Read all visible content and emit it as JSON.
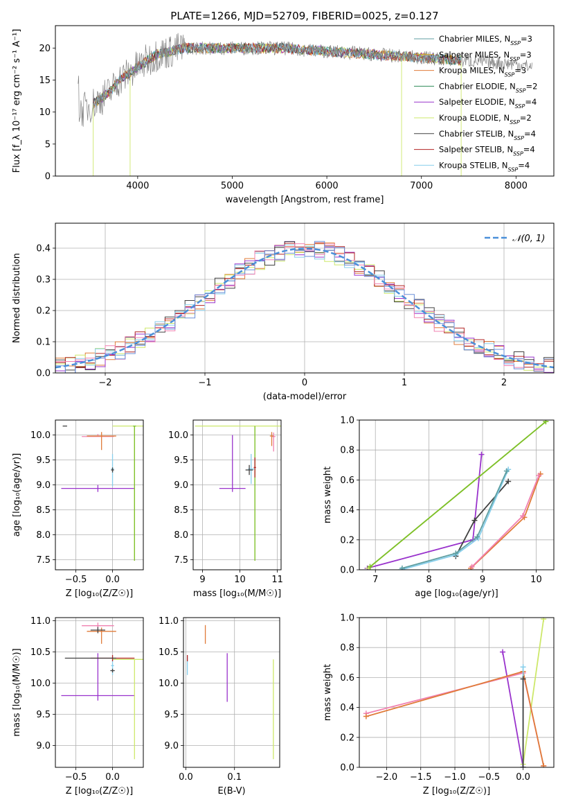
{
  "figure": {
    "title": "PLATE=1266, MJD=52709, FIBERID=0025, z=0.127"
  },
  "chart_data": [
    {
      "id": "spectrum",
      "type": "line",
      "xlabel": "wavelength [Angstrom, rest frame]",
      "ylabel": "Flux [f_λ 10⁻¹⁷ erg cm⁻² s⁻¹ A⁻¹]",
      "xlim": [
        3130,
        8400
      ],
      "ylim": [
        0,
        23.5
      ],
      "xticks": [
        4000,
        5000,
        6000,
        7000,
        8000
      ],
      "yticks": [
        0,
        5,
        10,
        15,
        20
      ],
      "grid": false,
      "legend_position": "top-right",
      "data_series": {
        "name": "",
        "color": "#808080",
        "x_range": [
          3370,
          8170
        ],
        "approx_points": [
          [
            3380,
            10
          ],
          [
            3500,
            11
          ],
          [
            3600,
            12
          ],
          [
            3700,
            13
          ],
          [
            3800,
            15
          ],
          [
            3900,
            16
          ],
          [
            4000,
            17
          ],
          [
            4200,
            19
          ],
          [
            4500,
            20
          ],
          [
            5000,
            20
          ],
          [
            5500,
            20
          ],
          [
            6000,
            19.5
          ],
          [
            6500,
            19
          ],
          [
            7000,
            18.5
          ],
          [
            7500,
            18
          ],
          [
            8000,
            17.5
          ],
          [
            8170,
            17
          ]
        ]
      },
      "series": [
        {
          "name": "Chabrier MILES, N_SSP=3",
          "color": "#5f9ea0"
        },
        {
          "name": "Salpeter MILES, N_SSP=3",
          "color": "#d4a020"
        },
        {
          "name": "Kroupa MILES, N_SSP=3",
          "color": "#e07b39"
        },
        {
          "name": "Chabrier ELODIE, N_SSP=2",
          "color": "#2e8b57"
        },
        {
          "name": "Salpeter ELODIE, N_SSP=4",
          "color": "#9932cc"
        },
        {
          "name": "Kroupa ELODIE, N_SSP=2",
          "color": "#cde86a"
        },
        {
          "name": "Chabrier STELIB, N_SSP=4",
          "color": "#404040"
        },
        {
          "name": "Salpeter STELIB, N_SSP=4",
          "color": "#b22222"
        },
        {
          "name": "Kroupa STELIB, N_SSP=4",
          "color": "#87ceeb"
        }
      ],
      "model_x_range": [
        3530,
        7420
      ]
    },
    {
      "id": "residuals",
      "type": "histogram",
      "xlabel": "(data-model)/error",
      "ylabel": "Normed distribution",
      "xlim": [
        -2.5,
        2.5
      ],
      "ylim": [
        0,
        0.48
      ],
      "xticks": [
        -2,
        -1,
        0,
        1,
        2
      ],
      "yticks": [
        0.0,
        0.1,
        0.2,
        0.3,
        0.4
      ],
      "grid": true,
      "legend_position": "top-right",
      "reference": {
        "name": "𝒩(0, 1)",
        "color": "#4a90d9",
        "style": "dashed"
      },
      "hist_colors": [
        "#e07b39",
        "#9932cc",
        "#cde86a",
        "#404040",
        "#b22222",
        "#87ceeb",
        "#f080b0",
        "#6a8fd8"
      ]
    },
    {
      "id": "age_vs_Z",
      "type": "errorbar",
      "xlabel": "Z [log₁₀(Z/Z☉)]",
      "ylabel": "age  [log₁₀(age/yr)]",
      "xlim": [
        -0.78,
        0.42
      ],
      "ylim": [
        7.3,
        10.3
      ],
      "xticks": [
        -0.5,
        0.0
      ],
      "yticks": [
        7.5,
        8.0,
        8.5,
        9.0,
        9.5,
        10.0
      ],
      "grid": true,
      "points": [
        {
          "x": -0.2,
          "y": 8.93,
          "xerr": 0.5,
          "yerr": [
            0.07,
            0.07
          ],
          "color": "#9932cc"
        },
        {
          "x": 0.3,
          "y": 10.18,
          "xerr": 0.3,
          "yerr": [
            2.7,
            0.0
          ],
          "color": "#cde86a"
        },
        {
          "x": 0.3,
          "y": 10.18,
          "xerr": 0.02,
          "yerr": [
            2.7,
            0.0
          ],
          "color": "#7cbf2a"
        },
        {
          "x": -0.2,
          "y": 9.97,
          "xerr": 0.22,
          "yerr": [
            0.0,
            0.05
          ],
          "color": "#f080b0"
        },
        {
          "x": -0.15,
          "y": 9.98,
          "xerr": 0.2,
          "yerr": [
            0.28,
            0.08
          ],
          "color": "#e07b39"
        },
        {
          "x": 0.0,
          "y": 9.32,
          "xerr": 0.02,
          "yerr": [
            0.35,
            0.3
          ],
          "color": "#87ceeb"
        },
        {
          "x": 0.0,
          "y": 9.3,
          "xerr": 0.02,
          "yerr": [
            0.05,
            0.05
          ],
          "color": "#404040"
        },
        {
          "x": -0.65,
          "y": 10.18,
          "xerr": 0.03,
          "yerr": [
            0.0,
            0.0
          ],
          "color": "#404040"
        }
      ]
    },
    {
      "id": "age_vs_mass",
      "type": "errorbar",
      "xlabel": "mass [log₁₀(M/M☉)]",
      "ylabel": "",
      "xlim": [
        8.75,
        11.1
      ],
      "ylim": [
        7.3,
        10.3
      ],
      "xticks": [
        9,
        10,
        11
      ],
      "yticks": [
        7.5,
        8.0,
        8.5,
        9.0,
        9.5,
        10.0
      ],
      "grid": true,
      "points": [
        {
          "x": 9.8,
          "y": 8.93,
          "xerr": 0.35,
          "yerr": [
            0.07,
            1.07
          ],
          "color": "#9932cc"
        },
        {
          "x": 10.4,
          "y": 10.18,
          "xerr": 1.6,
          "yerr": [
            2.7,
            0.0
          ],
          "color": "#cde86a"
        },
        {
          "x": 10.4,
          "y": 10.18,
          "xerr": 0.0,
          "yerr": [
            2.7,
            0.0
          ],
          "color": "#7cbf2a"
        },
        {
          "x": 10.9,
          "y": 9.97,
          "xerr": 0.05,
          "yerr": [
            0.3,
            0.08
          ],
          "color": "#f080b0"
        },
        {
          "x": 10.85,
          "y": 9.98,
          "xerr": 0.05,
          "yerr": [
            0.2,
            0.08
          ],
          "color": "#e07b39"
        },
        {
          "x": 10.3,
          "y": 9.32,
          "xerr": 0.08,
          "yerr": [
            0.3,
            0.3
          ],
          "color": "#87ceeb"
        },
        {
          "x": 10.25,
          "y": 9.3,
          "xerr": 0.1,
          "yerr": [
            0.1,
            0.1
          ],
          "color": "#404040"
        },
        {
          "x": 10.4,
          "y": 9.35,
          "xerr": 0.03,
          "yerr": [
            0.2,
            0.2
          ],
          "color": "#b22222"
        }
      ]
    },
    {
      "id": "massweight_vs_age",
      "type": "line",
      "xlabel": "age  [log₁₀(age/yr)]",
      "ylabel": "mass weight",
      "xlim": [
        6.7,
        10.33
      ],
      "ylim": [
        0,
        1
      ],
      "xticks": [
        7,
        8,
        9,
        10
      ],
      "yticks": [
        0.0,
        0.2,
        0.4,
        0.6,
        0.8,
        1.0
      ],
      "grid": true,
      "series": [
        {
          "color": "#9932cc",
          "x": [
            6.85,
            8.82,
            8.98
          ],
          "y": [
            0.01,
            0.2,
            0.77
          ]
        },
        {
          "color": "#cde86a",
          "x": [
            6.87,
            10.18
          ],
          "y": [
            0.01,
            0.99
          ]
        },
        {
          "color": "#7cbf2a",
          "x": [
            6.9,
            10.18
          ],
          "y": [
            0.02,
            0.99
          ]
        },
        {
          "color": "#e07b39",
          "x": [
            8.78,
            9.78,
            10.08
          ],
          "y": [
            0.01,
            0.35,
            0.64
          ]
        },
        {
          "color": "#f080b0",
          "x": [
            8.8,
            9.75,
            10.05
          ],
          "y": [
            0.02,
            0.36,
            0.63
          ]
        },
        {
          "color": "#404040",
          "x": [
            8.5,
            8.85,
            9.48
          ],
          "y": [
            0.09,
            0.33,
            0.59
          ]
        },
        {
          "color": "#87ceeb",
          "x": [
            7.48,
            8.5,
            8.92,
            9.48
          ],
          "y": [
            0.0,
            0.1,
            0.21,
            0.67
          ]
        },
        {
          "color": "#5f9ea0",
          "x": [
            7.5,
            8.5,
            8.9,
            9.45
          ],
          "y": [
            0.01,
            0.11,
            0.22,
            0.66
          ]
        }
      ]
    },
    {
      "id": "mass_vs_Z",
      "type": "errorbar",
      "xlabel": "Z [log₁₀(Z/Z☉)]",
      "ylabel": "mass [log₁₀(M/M☉)]",
      "xlim": [
        -0.78,
        0.42
      ],
      "ylim": [
        8.65,
        11.05
      ],
      "xticks": [
        -0.5,
        0.0
      ],
      "yticks": [
        9.0,
        9.5,
        10.0,
        10.5,
        11.0
      ],
      "grid": true,
      "points": [
        {
          "x": -0.2,
          "y": 9.8,
          "xerr": 0.5,
          "yerr": [
            0.08,
            0.68
          ],
          "color": "#9932cc"
        },
        {
          "x": 0.3,
          "y": 10.38,
          "xerr": 0.3,
          "yerr": [
            1.6,
            0.0
          ],
          "color": "#cde86a"
        },
        {
          "x": -0.2,
          "y": 10.92,
          "xerr": 0.22,
          "yerr": [
            0.1,
            0.05
          ],
          "color": "#f080b0"
        },
        {
          "x": -0.15,
          "y": 10.83,
          "xerr": 0.2,
          "yerr": [
            0.2,
            0.06
          ],
          "color": "#e07b39"
        },
        {
          "x": -0.2,
          "y": 10.85,
          "xerr": 0.1,
          "yerr": [
            0.05,
            0.05
          ],
          "color": "#404040"
        },
        {
          "x": 0.0,
          "y": 10.28,
          "xerr": 0.02,
          "yerr": [
            0.15,
            0.15
          ],
          "color": "#87ceeb"
        },
        {
          "x": 0.0,
          "y": 10.4,
          "xerr": 0.3,
          "yerr": [
            0.05,
            0.05
          ],
          "color": "#b22222"
        },
        {
          "x": -0.3,
          "y": 10.4,
          "xerr": 0.35,
          "yerr": [
            0.0,
            0.0
          ],
          "color": "#404040"
        },
        {
          "x": 0.0,
          "y": 10.2,
          "xerr": 0.03,
          "yerr": [
            0.03,
            0.03
          ],
          "color": "#404040"
        }
      ]
    },
    {
      "id": "mass_vs_EBV",
      "type": "errorbar",
      "xlabel": "E(B-V)",
      "ylabel": "",
      "xlim": [
        -0.005,
        0.193
      ],
      "ylim": [
        8.65,
        11.05
      ],
      "xticks": [
        0.0,
        0.1
      ],
      "yticks": [
        9.0,
        9.5,
        10.0,
        10.5,
        11.0
      ],
      "grid": true,
      "points": [
        {
          "x": 0.085,
          "y": 9.8,
          "xerr": 0.0,
          "yerr": [
            0.1,
            0.68
          ],
          "color": "#9932cc"
        },
        {
          "x": 0.18,
          "y": 10.38,
          "xerr": 0.0,
          "yerr": [
            1.6,
            0.0
          ],
          "color": "#cde86a"
        },
        {
          "x": 0.04,
          "y": 10.83,
          "xerr": 0.0,
          "yerr": [
            0.2,
            0.1
          ],
          "color": "#e07b39"
        },
        {
          "x": 0.003,
          "y": 10.28,
          "xerr": 0.0,
          "yerr": [
            0.15,
            0.15
          ],
          "color": "#87ceeb"
        },
        {
          "x": 0.003,
          "y": 10.4,
          "xerr": 0.0,
          "yerr": [
            0.05,
            0.05
          ],
          "color": "#b22222"
        }
      ]
    },
    {
      "id": "massweight_vs_Z",
      "type": "line",
      "xlabel": "Z [log₁₀(Z/Z☉)]",
      "ylabel": "mass weight",
      "xlim": [
        -2.4,
        0.45
      ],
      "ylim": [
        0,
        1
      ],
      "xticks": [
        -2.0,
        -1.5,
        -1.0,
        -0.5,
        0.0
      ],
      "yticks": [
        0.0,
        0.2,
        0.4,
        0.6,
        0.8,
        1.0
      ],
      "grid": true,
      "series": [
        {
          "color": "#9932cc",
          "x": [
            -0.3,
            0.0
          ],
          "y": [
            0.77,
            0.0
          ]
        },
        {
          "color": "#cde86a",
          "x": [
            0.0,
            0.3
          ],
          "y": [
            0.02,
            0.99
          ]
        },
        {
          "color": "#f080b0",
          "x": [
            -2.3,
            0.0,
            0.3
          ],
          "y": [
            0.36,
            0.63,
            0.01
          ]
        },
        {
          "color": "#e07b39",
          "x": [
            -2.3,
            0.0,
            0.3
          ],
          "y": [
            0.34,
            0.64,
            0.01
          ]
        },
        {
          "color": "#87ceeb",
          "x": [
            0.0,
            0.0
          ],
          "y": [
            0.0,
            0.67
          ]
        },
        {
          "color": "#404040",
          "x": [
            0.0,
            0.0
          ],
          "y": [
            0.0,
            0.59
          ]
        }
      ]
    }
  ]
}
